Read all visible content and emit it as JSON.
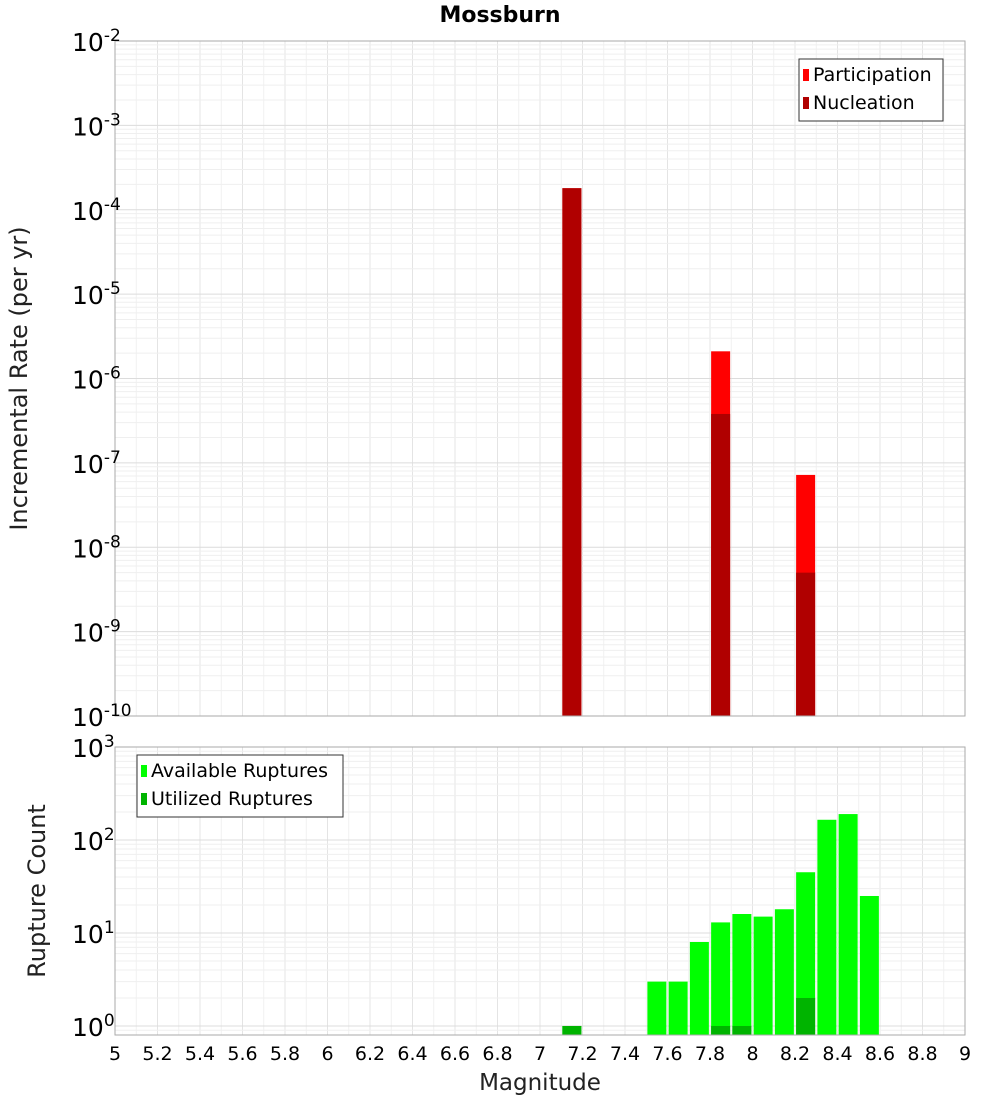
{
  "chart_data": [
    {
      "type": "bar",
      "title": "Mossburn",
      "xlabel": "",
      "ylabel": "Incremental Rate (per yr)",
      "xlim": [
        5,
        9
      ],
      "ylim": [
        1e-10,
        0.01
      ],
      "yscale": "log",
      "grid": true,
      "legend_position": "top-right",
      "y_tick_exponents": [
        "-10",
        "-9",
        "-8",
        "-7",
        "-6",
        "-5",
        "-4",
        "-3",
        "-2"
      ],
      "series": [
        {
          "name": "Participation",
          "color": "#ff0000",
          "points": [
            {
              "x": 7.15,
              "y": 0.00018
            },
            {
              "x": 7.85,
              "y": 2.1e-06
            },
            {
              "x": 8.25,
              "y": 7.2e-08
            }
          ]
        },
        {
          "name": "Nucleation",
          "color": "#b00000",
          "points": [
            {
              "x": 7.15,
              "y": 0.00018
            },
            {
              "x": 7.85,
              "y": 3.8e-07
            },
            {
              "x": 8.25,
              "y": 5e-09
            }
          ]
        }
      ]
    },
    {
      "type": "bar",
      "title": "",
      "xlabel": "Magnitude",
      "ylabel": "Rupture Count",
      "xlim": [
        5,
        9
      ],
      "ylim": [
        0.8,
        1000
      ],
      "yscale": "log",
      "grid": true,
      "legend_position": "top-left",
      "y_tick_exponents": [
        "0",
        "1",
        "2",
        "3"
      ],
      "x_tick_labels": [
        "5",
        "5.2",
        "5.4",
        "5.6",
        "5.8",
        "6",
        "6.2",
        "6.4",
        "6.6",
        "6.8",
        "7",
        "7.2",
        "7.4",
        "7.6",
        "7.8",
        "8",
        "8.2",
        "8.4",
        "8.6",
        "8.8",
        "9"
      ],
      "series": [
        {
          "name": "Available Ruptures",
          "color": "#00ff00",
          "points": [
            {
              "x": 7.15,
              "y": 1
            },
            {
              "x": 7.55,
              "y": 3
            },
            {
              "x": 7.65,
              "y": 3
            },
            {
              "x": 7.75,
              "y": 8
            },
            {
              "x": 7.85,
              "y": 13
            },
            {
              "x": 7.95,
              "y": 16
            },
            {
              "x": 8.05,
              "y": 15
            },
            {
              "x": 8.15,
              "y": 18
            },
            {
              "x": 8.25,
              "y": 45
            },
            {
              "x": 8.35,
              "y": 165
            },
            {
              "x": 8.45,
              "y": 190
            },
            {
              "x": 8.55,
              "y": 25
            }
          ]
        },
        {
          "name": "Utilized Ruptures",
          "color": "#00b400",
          "points": [
            {
              "x": 7.15,
              "y": 1
            },
            {
              "x": 7.85,
              "y": 1
            },
            {
              "x": 7.95,
              "y": 1
            },
            {
              "x": 8.25,
              "y": 2
            }
          ]
        }
      ]
    }
  ]
}
